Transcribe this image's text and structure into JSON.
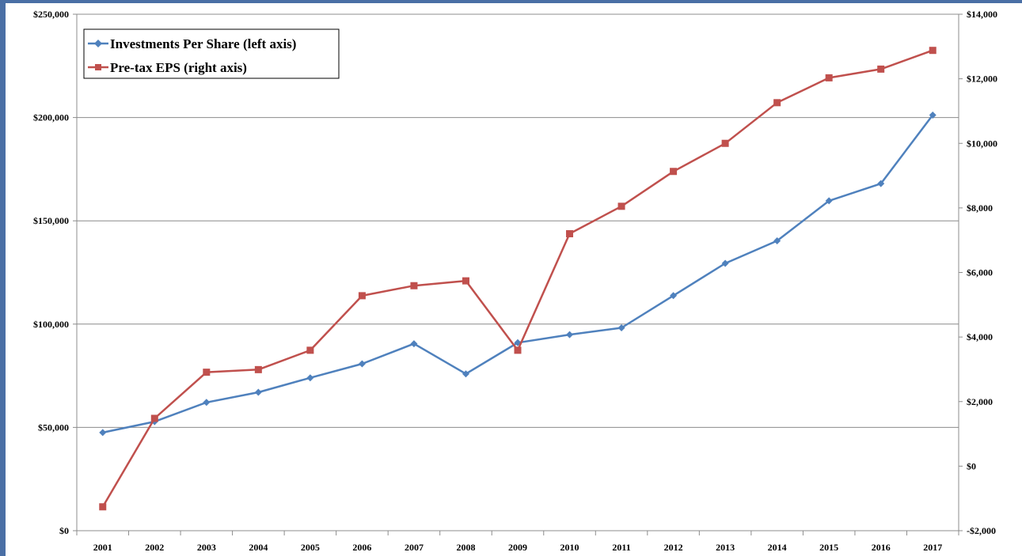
{
  "chart_data": {
    "type": "line",
    "title": "",
    "xlabel": "",
    "ylabel": "",
    "categories": [
      "2001",
      "2002",
      "2003",
      "2004",
      "2005",
      "2006",
      "2007",
      "2008",
      "2009",
      "2010",
      "2011",
      "2012",
      "2013",
      "2014",
      "2015",
      "2016",
      "2017"
    ],
    "left_axis": {
      "ylim": [
        0,
        250000
      ],
      "ticks": [
        0,
        50000,
        100000,
        150000,
        200000,
        250000
      ],
      "tick_labels": [
        "$0",
        "$50,000",
        "$100,000",
        "$150,000",
        "$200,000",
        "$250,000"
      ]
    },
    "right_axis": {
      "ylim": [
        -2000,
        14000
      ],
      "ticks": [
        -2000,
        0,
        2000,
        4000,
        6000,
        8000,
        10000,
        12000,
        14000
      ],
      "tick_labels": [
        "-$2,000",
        "$0",
        "$2,000",
        "$4,000",
        "$6,000",
        "$8,000",
        "$10,000",
        "$12,000",
        "$14,000"
      ]
    },
    "grid": true,
    "legend_position": "top-left",
    "series": [
      {
        "name": "Investments Per Share (left axis)",
        "axis": "left",
        "color": "#4F81BD",
        "marker": "diamond",
        "values": [
          47500,
          52800,
          62100,
          67000,
          74000,
          80800,
          90500,
          75900,
          91000,
          94900,
          98200,
          113800,
          129400,
          140300,
          159700,
          168000,
          201200
        ]
      },
      {
        "name": "Pre-tax EPS (right axis)",
        "axis": "right",
        "color": "#C0504D",
        "marker": "square",
        "values": [
          -1260,
          1480,
          2910,
          2990,
          3590,
          5280,
          5590,
          5740,
          3590,
          7200,
          8050,
          9130,
          10000,
          11260,
          12030,
          12300,
          12880
        ]
      }
    ]
  },
  "frame": {
    "border_color": "#4A6FA5"
  }
}
